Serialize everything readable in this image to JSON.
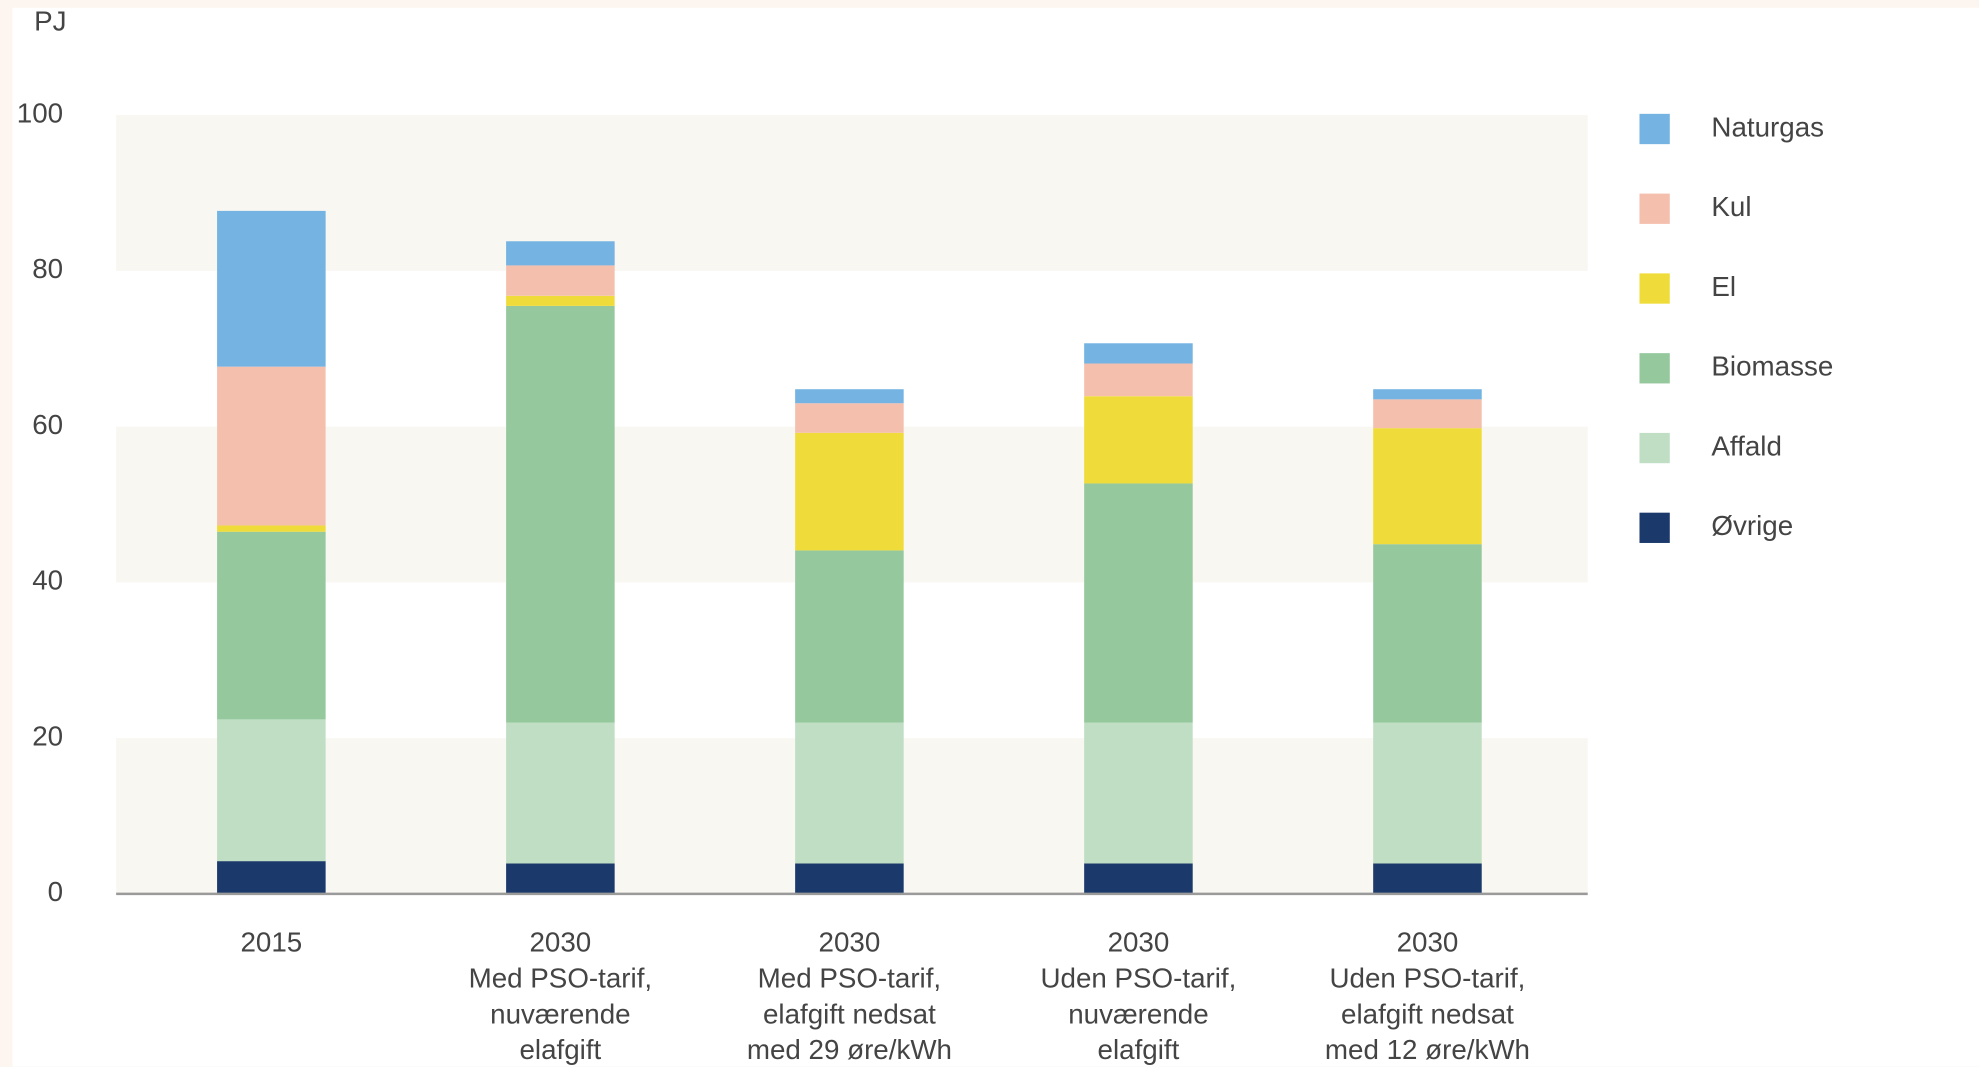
{
  "chart_data": {
    "type": "stacked_bar",
    "y_label": "PJ",
    "categories": [
      [
        "2015"
      ],
      [
        "2030",
        "Med PSO-tarif,",
        "nuværende",
        "elafgift"
      ],
      [
        "2030",
        "Med PSO-tarif,",
        "elafgift nedsat",
        "med 29 øre/kWh"
      ],
      [
        "2030",
        "Uden PSO-tarif,",
        "nuværende",
        "elafgift"
      ],
      [
        "2030",
        "Uden PSO-tarif,",
        "elafgift nedsat",
        "med 12 øre/kWh"
      ]
    ],
    "series": [
      {
        "name": "Øvrige",
        "color": "#1b3a6b",
        "values": [
          4.2,
          3.9,
          3.9,
          3.9,
          3.9
        ]
      },
      {
        "name": "Affald",
        "color": "#c0dec4",
        "values": [
          18.2,
          18.1,
          18.1,
          18.1,
          18.1
        ]
      },
      {
        "name": "Biomasse",
        "color": "#96c89e",
        "values": [
          24.1,
          53.5,
          22.1,
          30.7,
          22.9
        ]
      },
      {
        "name": "El",
        "color": "#efdc3a",
        "values": [
          0.8,
          1.3,
          15.1,
          11.2,
          14.9
        ]
      },
      {
        "name": "Kul",
        "color": "#f5bfae",
        "values": [
          20.4,
          3.9,
          3.8,
          4.2,
          3.7
        ]
      },
      {
        "name": "Naturgas",
        "color": "#74b3e2",
        "values": [
          20.0,
          3.1,
          1.8,
          2.6,
          1.3
        ]
      }
    ],
    "ylim": [
      0,
      100
    ],
    "yticks": [
      0,
      20,
      40,
      60,
      80,
      100
    ],
    "legend": "right"
  }
}
